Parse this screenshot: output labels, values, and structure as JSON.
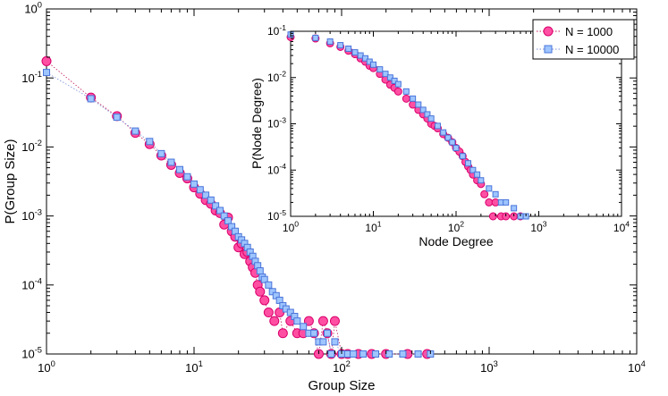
{
  "chart_data": [
    {
      "type": "scatter",
      "id": "main",
      "xlabel": "Group Size",
      "ylabel": "P(Group Size)",
      "xscale": "log",
      "yscale": "log",
      "xlim": [
        1,
        10000
      ],
      "ylim": [
        1e-05,
        1
      ],
      "x_ticks": [
        {
          "value": 1,
          "base": "10",
          "exp": "0"
        },
        {
          "value": 10,
          "base": "10",
          "exp": "1"
        },
        {
          "value": 100,
          "base": "10",
          "exp": "2"
        },
        {
          "value": 1000,
          "base": "10",
          "exp": "3"
        },
        {
          "value": 10000,
          "base": "10",
          "exp": "4"
        }
      ],
      "y_ticks": [
        {
          "value": 1e-05,
          "base": "10",
          "exp": "-5"
        },
        {
          "value": 0.0001,
          "base": "10",
          "exp": "-4"
        },
        {
          "value": 0.001,
          "base": "10",
          "exp": "-3"
        },
        {
          "value": 0.01,
          "base": "10",
          "exp": "-2"
        },
        {
          "value": 0.1,
          "base": "10",
          "exp": "-1"
        },
        {
          "value": 1,
          "base": "10",
          "exp": "0"
        }
      ],
      "series": [
        {
          "name": "N = 1000",
          "marker": "circle",
          "color": "#ff4fa3",
          "edge": "#d9006c",
          "line": "#c2185b",
          "points": [
            [
              1,
              0.175
            ],
            [
              2,
              0.052
            ],
            [
              3,
              0.028
            ],
            [
              4,
              0.016
            ],
            [
              5,
              0.011
            ],
            [
              6,
              0.0075
            ],
            [
              7,
              0.0055
            ],
            [
              8,
              0.0042
            ],
            [
              9,
              0.0035
            ],
            [
              10,
              0.0026
            ],
            [
              11,
              0.0021
            ],
            [
              12,
              0.0017
            ],
            [
              13,
              0.0015
            ],
            [
              14,
              0.0012
            ],
            [
              15,
              0.0011
            ],
            [
              16,
              0.00075
            ],
            [
              17,
              0.00095
            ],
            [
              18,
              0.0006
            ],
            [
              19,
              0.0005
            ],
            [
              20,
              0.00035
            ],
            [
              21,
              0.0004
            ],
            [
              22,
              0.00028
            ],
            [
              23,
              0.0003
            ],
            [
              24,
              0.00022
            ],
            [
              25,
              0.00018
            ],
            [
              26,
              0.00015
            ],
            [
              27,
              0.0001
            ],
            [
              28,
              8e-05
            ],
            [
              30,
              6e-05
            ],
            [
              32,
              4e-05
            ],
            [
              35,
              3e-05
            ],
            [
              38,
              4e-05
            ],
            [
              40,
              2e-05
            ],
            [
              45,
              3e-05
            ],
            [
              50,
              2e-05
            ],
            [
              55,
              2e-05
            ],
            [
              60,
              3e-05
            ],
            [
              65,
              2e-05
            ],
            [
              70,
              1e-05
            ],
            [
              75,
              3e-05
            ],
            [
              80,
              2e-05
            ],
            [
              85,
              1e-05
            ],
            [
              90,
              3e-05
            ],
            [
              100,
              1e-05
            ],
            [
              110,
              1e-05
            ],
            [
              130,
              1e-05
            ],
            [
              160,
              1e-05
            ],
            [
              200,
              1e-05
            ],
            [
              280,
              1e-05
            ],
            [
              380,
              1e-05
            ]
          ]
        },
        {
          "name": "N = 10000",
          "marker": "square",
          "color": "#9ec5ff",
          "edge": "#4a74d9",
          "line": "#7a8fd9",
          "points": [
            [
              1,
              0.12
            ],
            [
              2,
              0.05
            ],
            [
              3,
              0.027
            ],
            [
              4,
              0.017
            ],
            [
              5,
              0.012
            ],
            [
              6,
              0.008
            ],
            [
              7,
              0.006
            ],
            [
              8,
              0.0047
            ],
            [
              9,
              0.0037
            ],
            [
              10,
              0.0029
            ],
            [
              11,
              0.0024
            ],
            [
              12,
              0.002
            ],
            [
              13,
              0.0017
            ],
            [
              14,
              0.0014
            ],
            [
              15,
              0.0012
            ],
            [
              16,
              0.001
            ],
            [
              17,
              0.00085
            ],
            [
              18,
              0.0007
            ],
            [
              19,
              0.0006
            ],
            [
              20,
              0.0005
            ],
            [
              21,
              0.00045
            ],
            [
              22,
              0.0004
            ],
            [
              23,
              0.00035
            ],
            [
              24,
              0.0003
            ],
            [
              25,
              0.00026
            ],
            [
              26,
              0.00022
            ],
            [
              27,
              0.00019
            ],
            [
              28,
              0.00016
            ],
            [
              29,
              0.00013
            ],
            [
              30,
              0.00012
            ],
            [
              32,
              0.0001
            ],
            [
              34,
              8e-05
            ],
            [
              36,
              7e-05
            ],
            [
              38,
              6e-05
            ],
            [
              40,
              5e-05
            ],
            [
              42,
              4.5e-05
            ],
            [
              45,
              4e-05
            ],
            [
              48,
              3.5e-05
            ],
            [
              50,
              3e-05
            ],
            [
              55,
              2.5e-05
            ],
            [
              60,
              2e-05
            ],
            [
              65,
              2e-05
            ],
            [
              70,
              1.5e-05
            ],
            [
              75,
              1.5e-05
            ],
            [
              80,
              2e-05
            ],
            [
              85,
              1e-05
            ],
            [
              90,
              1.5e-05
            ],
            [
              100,
              1e-05
            ],
            [
              110,
              1e-05
            ],
            [
              120,
              1e-05
            ],
            [
              140,
              1e-05
            ],
            [
              170,
              1e-05
            ],
            [
              210,
              1e-05
            ],
            [
              260,
              1e-05
            ],
            [
              330,
              1e-05
            ],
            [
              400,
              1e-05
            ]
          ]
        }
      ]
    },
    {
      "type": "scatter",
      "id": "inset",
      "xlabel": "Node Degree",
      "ylabel": "P(Node Degree)",
      "xscale": "log",
      "yscale": "log",
      "xlim": [
        1,
        10000
      ],
      "ylim": [
        1e-05,
        0.1
      ],
      "x_ticks": [
        {
          "value": 1,
          "base": "10",
          "exp": "0"
        },
        {
          "value": 10,
          "base": "10",
          "exp": "1"
        },
        {
          "value": 100,
          "base": "10",
          "exp": "2"
        },
        {
          "value": 1000,
          "base": "10",
          "exp": "3"
        },
        {
          "value": 10000,
          "base": "10",
          "exp": "4"
        }
      ],
      "y_ticks": [
        {
          "value": 1e-05,
          "base": "10",
          "exp": "-5"
        },
        {
          "value": 0.0001,
          "base": "10",
          "exp": "-4"
        },
        {
          "value": 0.001,
          "base": "10",
          "exp": "-3"
        },
        {
          "value": 0.01,
          "base": "10",
          "exp": "-2"
        },
        {
          "value": 0.1,
          "base": "10",
          "exp": "-1"
        }
      ],
      "series": [
        {
          "name": "N = 1000",
          "marker": "circle",
          "color": "#ff4fa3",
          "edge": "#d9006c",
          "points": [
            [
              1,
              0.075
            ],
            [
              2,
              0.07
            ],
            [
              3,
              0.055
            ],
            [
              4,
              0.046
            ],
            [
              5,
              0.038
            ],
            [
              6,
              0.032
            ],
            [
              7,
              0.026
            ],
            [
              8,
              0.022
            ],
            [
              9,
              0.018
            ],
            [
              10,
              0.016
            ],
            [
              12,
              0.012
            ],
            [
              14,
              0.009
            ],
            [
              16,
              0.007
            ],
            [
              18,
              0.006
            ],
            [
              20,
              0.005
            ],
            [
              25,
              0.0035
            ],
            [
              30,
              0.0026
            ],
            [
              35,
              0.002
            ],
            [
              40,
              0.0016
            ],
            [
              45,
              0.0013
            ],
            [
              50,
              0.001
            ],
            [
              55,
              0.0009
            ],
            [
              60,
              0.0008
            ],
            [
              70,
              0.0006
            ],
            [
              80,
              0.0005
            ],
            [
              90,
              0.0004
            ],
            [
              100,
              0.0003
            ],
            [
              110,
              0.00025
            ],
            [
              120,
              0.0002
            ],
            [
              130,
              0.00015
            ],
            [
              140,
              0.00012
            ],
            [
              150,
              0.0001
            ],
            [
              160,
              8e-05
            ],
            [
              180,
              6e-05
            ],
            [
              200,
              5e-05
            ],
            [
              220,
              3e-05
            ],
            [
              250,
              2e-05
            ],
            [
              280,
              1e-05
            ],
            [
              300,
              2e-05
            ],
            [
              350,
              1e-05
            ],
            [
              400,
              1e-05
            ],
            [
              500,
              1e-05
            ],
            [
              600,
              1e-05
            ]
          ]
        },
        {
          "name": "N = 10000",
          "marker": "square",
          "color": "#9ec5ff",
          "edge": "#4a74d9",
          "points": [
            [
              1,
              0.085
            ],
            [
              2,
              0.072
            ],
            [
              3,
              0.06
            ],
            [
              4,
              0.05
            ],
            [
              5,
              0.042
            ],
            [
              6,
              0.035
            ],
            [
              7,
              0.03
            ],
            [
              8,
              0.026
            ],
            [
              9,
              0.022
            ],
            [
              10,
              0.019
            ],
            [
              12,
              0.015
            ],
            [
              14,
              0.012
            ],
            [
              16,
              0.01
            ],
            [
              18,
              0.0085
            ],
            [
              20,
              0.0072
            ],
            [
              25,
              0.005
            ],
            [
              30,
              0.0035
            ],
            [
              35,
              0.0026
            ],
            [
              40,
              0.002
            ],
            [
              45,
              0.0016
            ],
            [
              50,
              0.0013
            ],
            [
              60,
              0.0009
            ],
            [
              70,
              0.00065
            ],
            [
              80,
              0.0005
            ],
            [
              90,
              0.0004
            ],
            [
              100,
              0.0003
            ],
            [
              120,
              0.0002
            ],
            [
              140,
              0.00014
            ],
            [
              160,
              0.0001
            ],
            [
              180,
              8e-05
            ],
            [
              200,
              6e-05
            ],
            [
              250,
              4e-05
            ],
            [
              300,
              3e-05
            ],
            [
              350,
              2e-05
            ],
            [
              400,
              2e-05
            ],
            [
              500,
              1.5e-05
            ],
            [
              600,
              1e-05
            ],
            [
              700,
              1e-05
            ]
          ]
        }
      ]
    }
  ]
}
